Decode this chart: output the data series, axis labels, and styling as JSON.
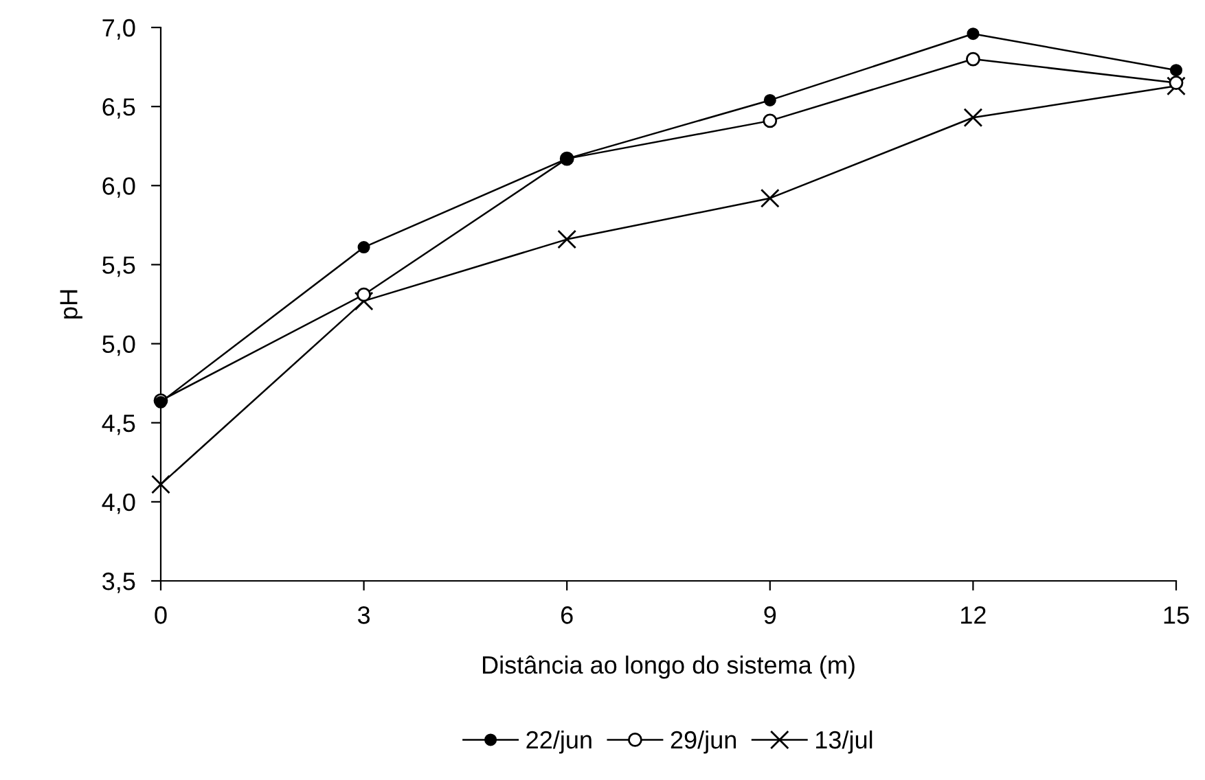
{
  "chart_data": {
    "type": "line",
    "xlabel": "Distância ao longo do sistema (m)",
    "ylabel": "pH",
    "x": [
      0,
      3,
      6,
      9,
      12,
      15
    ],
    "series": [
      {
        "name": "22/jun",
        "color": "#000000",
        "marker": "circle",
        "values": [
          4.63,
          5.61,
          6.17,
          6.54,
          6.96,
          6.73
        ]
      },
      {
        "name": "29/jun",
        "color": "#000000",
        "marker": "circle_open",
        "values": [
          4.64,
          5.31,
          6.17,
          6.41,
          6.8,
          6.65
        ]
      },
      {
        "name": "13/jul",
        "color": "#000000",
        "marker": "cross",
        "values": [
          4.11,
          5.27,
          5.66,
          5.92,
          6.43,
          6.63
        ]
      }
    ],
    "xlim": [
      0,
      15
    ],
    "xticks": [
      0,
      3,
      6,
      9,
      12,
      15
    ],
    "ylim": [
      3.5,
      7.0
    ],
    "yticks": [
      {
        "value": 3.5,
        "label": "3,5"
      },
      {
        "value": 4.0,
        "label": "4,0"
      },
      {
        "value": 4.5,
        "label": "4,5"
      },
      {
        "value": 5.0,
        "label": "5,0"
      },
      {
        "value": 5.5,
        "label": "5,5"
      },
      {
        "value": 6.0,
        "label": "6,0"
      },
      {
        "value": 6.5,
        "label": "6,5"
      },
      {
        "value": 7.0,
        "label": "7,0"
      }
    ],
    "grid": false,
    "legend": "bottom",
    "line_style": "solid"
  }
}
